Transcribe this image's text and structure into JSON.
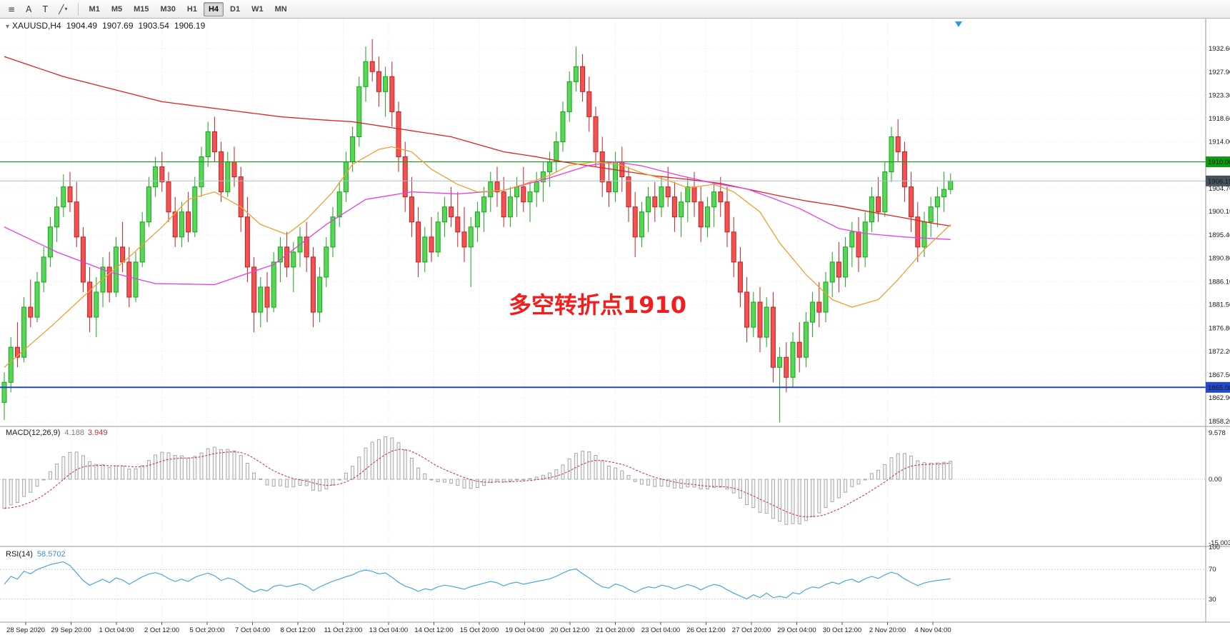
{
  "window": {
    "collapse_glyph": "▾",
    "symbol_tf": "XAUUSD,H4",
    "open": "1904.49",
    "high": "1907.69",
    "low": "1903.54",
    "close": "1906.19"
  },
  "toolbar": {
    "caret_glyph": "▾",
    "icons": [
      {
        "name": "chart-menu-icon",
        "glyph": "≡",
        "caret": false
      },
      {
        "name": "cursor-tool-icon",
        "glyph": "A",
        "caret": false
      },
      {
        "name": "text-tool-icon",
        "glyph": "T",
        "caret": false
      },
      {
        "name": "line-tools-icon",
        "glyph": "╱",
        "caret": true
      }
    ],
    "timeframes": [
      "M1",
      "M5",
      "M15",
      "M30",
      "H1",
      "H4",
      "D1",
      "W1",
      "MN"
    ],
    "active_timeframe": "H4"
  },
  "annotation": {
    "text": "多空转折点1910",
    "color": "#f21d1d"
  },
  "chart_data": {
    "type": "candlestick",
    "symbol": "XAUUSD",
    "timeframe": "H4",
    "title_ohlc": {
      "open": 1904.49,
      "high": 1907.69,
      "low": 1903.54,
      "close": 1906.19
    },
    "price_axis": {
      "labels": [
        "1932.60",
        "1927.90",
        "1923.30",
        "1918.60",
        "1914.00",
        "1904.70",
        "1900.10",
        "1895.40",
        "1890.80",
        "1886.10",
        "1881.50",
        "1876.80",
        "1872.20",
        "1867.50",
        "1862.90",
        "1858.20"
      ],
      "grid_extra": [
        1909.4
      ],
      "min": 1858.2,
      "max": 1932.6
    },
    "date_labels": [
      "28 Sep 2020",
      "29 Sep 20:00",
      "1 Oct 04:00",
      "2 Oct 12:00",
      "5 Oct 20:00",
      "7 Oct 04:00",
      "8 Oct 12:00",
      "11 Oct 23:00",
      "13 Oct 04:00",
      "14 Oct 12:00",
      "15 Oct 20:00",
      "19 Oct 04:00",
      "20 Oct 12:00",
      "21 Oct 20:00",
      "23 Oct 04:00",
      "26 Oct 12:00",
      "27 Oct 20:00",
      "29 Oct 04:00",
      "30 Oct 12:00",
      "2 Nov 20:00",
      "4 Nov 04:00"
    ],
    "candle_colors": {
      "up_stroke": "#18a418",
      "up_fill": "#58d658",
      "down_stroke": "#c41e1e",
      "down_fill": "#f25252"
    },
    "candles": [
      [
        1862,
        1868,
        1858.5,
        1866
      ],
      [
        1866,
        1875,
        1864,
        1873
      ],
      [
        1873,
        1878,
        1869,
        1871
      ],
      [
        1871,
        1883,
        1870,
        1881
      ],
      [
        1881,
        1886.5,
        1877,
        1879
      ],
      [
        1879,
        1888,
        1878,
        1886
      ],
      [
        1886,
        1893,
        1884,
        1891
      ],
      [
        1891,
        1899,
        1889,
        1897
      ],
      [
        1897,
        1903,
        1894,
        1901
      ],
      [
        1901,
        1907.5,
        1899,
        1905
      ],
      [
        1905,
        1908,
        1900,
        1902
      ],
      [
        1902,
        1906,
        1893,
        1895
      ],
      [
        1895,
        1897,
        1884,
        1886
      ],
      [
        1886,
        1889,
        1876,
        1879
      ],
      [
        1879,
        1887,
        1875,
        1884
      ],
      [
        1884,
        1891,
        1881,
        1889
      ],
      [
        1889,
        1892,
        1882,
        1884
      ],
      [
        1884,
        1895,
        1883,
        1893
      ],
      [
        1893,
        1898,
        1888,
        1890
      ],
      [
        1890,
        1893,
        1881,
        1883
      ],
      [
        1883,
        1892,
        1882,
        1890
      ],
      [
        1890,
        1900,
        1889,
        1898
      ],
      [
        1898,
        1907,
        1897,
        1905
      ],
      [
        1905,
        1911,
        1903,
        1909
      ],
      [
        1909,
        1912,
        1904,
        1906
      ],
      [
        1906,
        1908,
        1898,
        1900
      ],
      [
        1900,
        1903,
        1893,
        1895
      ],
      [
        1895,
        1902,
        1893,
        1900
      ],
      [
        1900,
        1904,
        1894,
        1896
      ],
      [
        1896,
        1907,
        1895,
        1905
      ],
      [
        1905,
        1913,
        1903,
        1911
      ],
      [
        1911,
        1918,
        1909,
        1916
      ],
      [
        1916,
        1919,
        1910,
        1912
      ],
      [
        1912,
        1914,
        1902,
        1904
      ],
      [
        1904,
        1912,
        1903,
        1910
      ],
      [
        1910,
        1913,
        1905,
        1907
      ],
      [
        1907,
        1909,
        1896,
        1899
      ],
      [
        1899,
        1903,
        1886,
        1889
      ],
      [
        1889,
        1891,
        1876,
        1880
      ],
      [
        1880,
        1887,
        1877,
        1885
      ],
      [
        1885,
        1888,
        1878,
        1881
      ],
      [
        1881,
        1892,
        1880,
        1890
      ],
      [
        1890,
        1895,
        1886,
        1893
      ],
      [
        1893,
        1896,
        1887,
        1889
      ],
      [
        1889,
        1894,
        1884,
        1892
      ],
      [
        1892,
        1897,
        1889,
        1895
      ],
      [
        1895,
        1898,
        1888,
        1891
      ],
      [
        1891,
        1893,
        1877,
        1880
      ],
      [
        1880,
        1889,
        1878,
        1887
      ],
      [
        1887,
        1895,
        1885,
        1893
      ],
      [
        1893,
        1901,
        1891,
        1899
      ],
      [
        1899,
        1906,
        1897,
        1904
      ],
      [
        1904,
        1912,
        1902,
        1910
      ],
      [
        1910,
        1917,
        1908,
        1915
      ],
      [
        1915,
        1927,
        1913,
        1925
      ],
      [
        1925,
        1933,
        1922,
        1930
      ],
      [
        1930,
        1934.5,
        1926,
        1928
      ],
      [
        1928,
        1931,
        1921,
        1924
      ],
      [
        1924,
        1929,
        1919,
        1927
      ],
      [
        1927,
        1930,
        1917,
        1920
      ],
      [
        1920,
        1922,
        1908,
        1911
      ],
      [
        1911,
        1914,
        1900,
        1903
      ],
      [
        1903,
        1907,
        1895,
        1898
      ],
      [
        1898,
        1901,
        1887,
        1890
      ],
      [
        1890,
        1897,
        1888,
        1895
      ],
      [
        1895,
        1899,
        1890,
        1892
      ],
      [
        1892,
        1900,
        1891,
        1898
      ],
      [
        1898,
        1903,
        1895,
        1901
      ],
      [
        1901,
        1905,
        1897,
        1899
      ],
      [
        1899,
        1904,
        1893,
        1896
      ],
      [
        1896,
        1901,
        1890,
        1893
      ],
      [
        1893,
        1899,
        1885,
        1897
      ],
      [
        1897,
        1902,
        1894,
        1900
      ],
      [
        1900,
        1905,
        1896,
        1903
      ],
      [
        1903,
        1908,
        1900,
        1906
      ],
      [
        1906,
        1909,
        1901,
        1904
      ],
      [
        1904,
        1907,
        1897,
        1899
      ],
      [
        1899,
        1905,
        1897,
        1903
      ],
      [
        1903,
        1907,
        1899,
        1905
      ],
      [
        1905,
        1909,
        1900,
        1902
      ],
      [
        1902,
        1906,
        1898,
        1904
      ],
      [
        1904,
        1908,
        1901,
        1906
      ],
      [
        1906,
        1910,
        1902,
        1908
      ],
      [
        1908,
        1912,
        1905,
        1910
      ],
      [
        1910,
        1916,
        1908,
        1914
      ],
      [
        1914,
        1922,
        1912,
        1920
      ],
      [
        1920,
        1928,
        1918,
        1926
      ],
      [
        1926,
        1933,
        1924,
        1929
      ],
      [
        1929,
        1931.5,
        1922,
        1924
      ],
      [
        1924,
        1927,
        1916,
        1919
      ],
      [
        1919,
        1921,
        1909,
        1912
      ],
      [
        1912,
        1915,
        1903,
        1906
      ],
      [
        1906,
        1910,
        1901,
        1904
      ],
      [
        1904,
        1912,
        1902,
        1910
      ],
      [
        1910,
        1913,
        1904,
        1907
      ],
      [
        1907,
        1909,
        1898,
        1901
      ],
      [
        1901,
        1904,
        1891,
        1895
      ],
      [
        1895,
        1902,
        1893,
        1900
      ],
      [
        1900,
        1905,
        1896,
        1903
      ],
      [
        1903,
        1906,
        1898,
        1901
      ],
      [
        1901,
        1907,
        1899,
        1905
      ],
      [
        1905,
        1909,
        1901,
        1903
      ],
      [
        1903,
        1906,
        1896,
        1899
      ],
      [
        1899,
        1904,
        1895,
        1902
      ],
      [
        1902,
        1907,
        1898,
        1905
      ],
      [
        1905,
        1908,
        1899,
        1902
      ],
      [
        1902,
        1905,
        1894,
        1897
      ],
      [
        1897,
        1903,
        1895,
        1901
      ],
      [
        1901,
        1906,
        1897,
        1904
      ],
      [
        1904,
        1907,
        1899,
        1902
      ],
      [
        1902,
        1905,
        1893,
        1896
      ],
      [
        1896,
        1899,
        1887,
        1890
      ],
      [
        1890,
        1893,
        1881,
        1884
      ],
      [
        1884,
        1887,
        1874,
        1877
      ],
      [
        1877,
        1884,
        1875,
        1882
      ],
      [
        1882,
        1885,
        1872,
        1875
      ],
      [
        1875,
        1883,
        1873,
        1881
      ],
      [
        1881,
        1884,
        1866,
        1869
      ],
      [
        1869,
        1873,
        1858,
        1871
      ],
      [
        1871,
        1874,
        1864,
        1867
      ],
      [
        1867,
        1876,
        1865,
        1874
      ],
      [
        1874,
        1878,
        1868,
        1871
      ],
      [
        1871,
        1880,
        1869,
        1878
      ],
      [
        1878,
        1884,
        1875,
        1882
      ],
      [
        1882,
        1886,
        1877,
        1880
      ],
      [
        1880,
        1888,
        1878,
        1886
      ],
      [
        1886,
        1892,
        1883,
        1890
      ],
      [
        1890,
        1894,
        1884,
        1887
      ],
      [
        1887,
        1895,
        1885,
        1893
      ],
      [
        1893,
        1898,
        1889,
        1896
      ],
      [
        1896,
        1899,
        1888,
        1891
      ],
      [
        1891,
        1900,
        1889,
        1898
      ],
      [
        1898,
        1905,
        1896,
        1903
      ],
      [
        1903,
        1907,
        1898,
        1900
      ],
      [
        1900,
        1910,
        1899,
        1908
      ],
      [
        1908,
        1917,
        1906,
        1915
      ],
      [
        1915,
        1918.5,
        1910,
        1912
      ],
      [
        1912,
        1914,
        1902,
        1905
      ],
      [
        1905,
        1908,
        1896,
        1899
      ],
      [
        1899,
        1902,
        1890,
        1893
      ],
      [
        1893,
        1900,
        1891,
        1898
      ],
      [
        1898,
        1903,
        1895,
        1901
      ],
      [
        1901,
        1905,
        1897,
        1903
      ],
      [
        1903,
        1908,
        1900,
        1904.5
      ],
      [
        1904.49,
        1907.69,
        1903.54,
        1906.19
      ]
    ],
    "overlays": {
      "resistance_line": {
        "price": 1910.0,
        "label": "1910.00",
        "color": "#0f9b0f"
      },
      "support_line": {
        "price": 1865.0,
        "label": "1865.00",
        "color": "#2149c9"
      },
      "current_price_line": {
        "price": 1906.19,
        "label": "1906.19",
        "color": "#46525c",
        "line_color": "#a9bbc7"
      },
      "ma_slow_red": {
        "color": "#e02020",
        "points": [
          [
            0,
            1931
          ],
          [
            9,
            1927
          ],
          [
            18,
            1924
          ],
          [
            24,
            1922
          ],
          [
            30,
            1921
          ],
          [
            36,
            1920
          ],
          [
            42,
            1919
          ],
          [
            48,
            1918.4
          ],
          [
            53,
            1918
          ],
          [
            58,
            1917
          ],
          [
            63,
            1916
          ],
          [
            68,
            1915
          ],
          [
            72,
            1913.5
          ],
          [
            76,
            1912
          ],
          [
            81,
            1911
          ],
          [
            85,
            1910
          ],
          [
            90,
            1909
          ],
          [
            95,
            1908
          ],
          [
            99,
            1907.2
          ],
          [
            104,
            1906.5
          ],
          [
            109,
            1905.7
          ],
          [
            114,
            1904.3
          ],
          [
            118,
            1903.2
          ],
          [
            122,
            1902.2
          ],
          [
            127,
            1901.2
          ],
          [
            131,
            1900.2
          ],
          [
            137,
            1898.8
          ],
          [
            141,
            1897.8
          ],
          [
            144,
            1897.2
          ]
        ]
      },
      "ma_mid_magenta": {
        "color": "#e83ce8",
        "points": [
          [
            0,
            1897
          ],
          [
            8,
            1892
          ],
          [
            16,
            1888
          ],
          [
            23,
            1885.7
          ],
          [
            32,
            1885.5
          ],
          [
            41,
            1889.5
          ],
          [
            49,
            1897.5
          ],
          [
            55,
            1902.5
          ],
          [
            62,
            1904
          ],
          [
            69,
            1903.6
          ],
          [
            76,
            1904.3
          ],
          [
            83,
            1906.8
          ],
          [
            89,
            1909.3
          ],
          [
            93,
            1910
          ],
          [
            97,
            1909.2
          ],
          [
            103,
            1907.2
          ],
          [
            108,
            1905.7
          ],
          [
            113,
            1904.6
          ],
          [
            117,
            1902.7
          ],
          [
            121,
            1900.7
          ],
          [
            124,
            1898.7
          ],
          [
            127,
            1896.7
          ],
          [
            131,
            1895.7
          ],
          [
            137,
            1895
          ],
          [
            144,
            1894.5
          ]
        ]
      },
      "ma_fast_orange": {
        "color": "#f0a030",
        "points": [
          [
            0,
            1869
          ],
          [
            7,
            1877
          ],
          [
            14,
            1885.5
          ],
          [
            19,
            1891
          ],
          [
            24,
            1897
          ],
          [
            28,
            1902.5
          ],
          [
            32,
            1904
          ],
          [
            36,
            1901
          ],
          [
            39,
            1897.5
          ],
          [
            43,
            1895.5
          ],
          [
            46,
            1898.5
          ],
          [
            50,
            1904
          ],
          [
            53,
            1909.5
          ],
          [
            57,
            1912.5
          ],
          [
            59,
            1913
          ],
          [
            62,
            1912
          ],
          [
            65,
            1908.5
          ],
          [
            69,
            1905.5
          ],
          [
            72,
            1904
          ],
          [
            76,
            1904.3
          ],
          [
            79,
            1905.5
          ],
          [
            83,
            1907.3
          ],
          [
            86,
            1909.3
          ],
          [
            90,
            1910
          ],
          [
            94,
            1909.3
          ],
          [
            97,
            1907.8
          ],
          [
            101,
            1906.3
          ],
          [
            104,
            1904.8
          ],
          [
            108,
            1905.5
          ],
          [
            111,
            1904
          ],
          [
            115,
            1900
          ],
          [
            118,
            1893.8
          ],
          [
            122,
            1887.5
          ],
          [
            126,
            1882.5
          ],
          [
            129,
            1881
          ],
          [
            133,
            1882.5
          ],
          [
            136,
            1886.5
          ],
          [
            140,
            1892.5
          ],
          [
            144,
            1897.5
          ]
        ]
      }
    },
    "macd": {
      "label": "MACD(12,26,9)",
      "value_main": "4.188",
      "value_signal": "3.949",
      "scale_top": "9.578",
      "scale_zero": "0.00",
      "scale_bottom": "-15.003",
      "params": [
        12,
        26,
        9
      ],
      "histogram_color": "#a8a8a8",
      "signal_color": "#d03030"
    },
    "rsi": {
      "label": "RSI(14)",
      "value": "58.5702",
      "period": 14,
      "levels": [
        "100",
        "70",
        "30"
      ],
      "line_color": "#4da6dd"
    }
  }
}
